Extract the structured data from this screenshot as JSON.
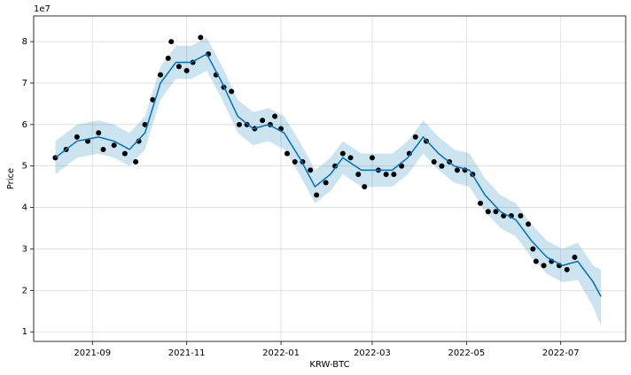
{
  "chart_data": {
    "type": "forecast",
    "x_label": "KRW-BTC",
    "y_label": "Price",
    "y_offset_label": "1e7",
    "grid": true,
    "xlim": [
      18833,
      19216
    ],
    "ylim": [
      0.77,
      8.62
    ],
    "xticks": [
      {
        "value": 18871,
        "label": "2021-09"
      },
      {
        "value": 18932,
        "label": "2021-11"
      },
      {
        "value": 18993,
        "label": "2022-01"
      },
      {
        "value": 19052,
        "label": "2022-03"
      },
      {
        "value": 19113,
        "label": "2022-05"
      },
      {
        "value": 19174,
        "label": "2022-07"
      }
    ],
    "yticks": [
      1,
      2,
      3,
      4,
      5,
      6,
      7,
      8
    ],
    "observed": {
      "color": "#000000",
      "x": [
        18847,
        18854,
        18861,
        18868,
        18875,
        18878,
        18885,
        18892,
        18899,
        18901,
        18905,
        18910,
        18915,
        18920,
        18922,
        18927,
        18932,
        18936,
        18941,
        18946,
        18951,
        18956,
        18961,
        18966,
        18971,
        18976,
        18981,
        18986,
        18989,
        18993,
        18997,
        19002,
        19007,
        19012,
        19016,
        19022,
        19028,
        19033,
        19038,
        19043,
        19047,
        19052,
        19056,
        19061,
        19066,
        19071,
        19076,
        19080,
        19087,
        19092,
        19097,
        19102,
        19107,
        19112,
        19117,
        19122,
        19127,
        19132,
        19137,
        19142,
        19148,
        19153,
        19156,
        19158,
        19163,
        19168,
        19173,
        19178,
        19183
      ],
      "values": [
        5.2,
        5.4,
        5.7,
        5.6,
        5.8,
        5.4,
        5.5,
        5.3,
        5.1,
        5.6,
        6.0,
        6.6,
        7.2,
        7.6,
        8.0,
        7.4,
        7.3,
        7.5,
        8.1,
        7.7,
        7.2,
        6.9,
        6.8,
        6.0,
        6.0,
        5.9,
        6.1,
        6.0,
        6.2,
        5.9,
        5.3,
        5.1,
        5.1,
        4.9,
        4.3,
        4.6,
        5.0,
        5.3,
        5.2,
        4.8,
        4.5,
        5.2,
        4.9,
        4.8,
        4.8,
        5.0,
        5.3,
        5.7,
        5.6,
        5.1,
        5.0,
        5.1,
        4.9,
        4.9,
        4.8,
        4.1,
        3.9,
        3.9,
        3.8,
        3.8,
        3.8,
        3.6,
        3.0,
        2.7,
        2.6,
        2.7,
        2.6,
        2.5,
        2.8
      ]
    },
    "forecast": {
      "color": "#0072B2",
      "x": [
        18847,
        18861,
        18875,
        18885,
        18895,
        18905,
        18915,
        18925,
        18935,
        18945,
        18955,
        18965,
        18975,
        18985,
        18995,
        19005,
        19015,
        19025,
        19033,
        19045,
        19055,
        19065,
        19075,
        19085,
        19095,
        19105,
        19115,
        19125,
        19135,
        19145,
        19155,
        19165,
        19175,
        19185,
        19195,
        19200
      ],
      "values": [
        5.2,
        5.6,
        5.7,
        5.6,
        5.4,
        5.8,
        7.0,
        7.5,
        7.5,
        7.7,
        7.0,
        6.2,
        5.9,
        6.0,
        5.8,
        5.2,
        4.5,
        4.8,
        5.2,
        4.9,
        4.9,
        4.9,
        5.2,
        5.7,
        5.3,
        5.0,
        4.9,
        4.3,
        3.9,
        3.7,
        3.2,
        2.8,
        2.6,
        2.7,
        2.2,
        1.85
      ],
      "lower": [
        4.8,
        5.2,
        5.3,
        5.2,
        5.0,
        5.4,
        6.6,
        7.1,
        7.1,
        7.3,
        6.6,
        5.8,
        5.5,
        5.6,
        5.4,
        4.8,
        4.1,
        4.4,
        4.8,
        4.5,
        4.5,
        4.5,
        4.8,
        5.3,
        4.9,
        4.6,
        4.5,
        3.9,
        3.5,
        3.3,
        2.8,
        2.4,
        2.2,
        2.25,
        1.6,
        1.15
      ],
      "upper": [
        5.6,
        6.0,
        6.1,
        6.0,
        5.8,
        6.2,
        7.4,
        7.9,
        7.9,
        8.1,
        7.4,
        6.6,
        6.3,
        6.4,
        6.2,
        5.6,
        4.9,
        5.2,
        5.6,
        5.3,
        5.3,
        5.3,
        5.6,
        6.1,
        5.7,
        5.4,
        5.3,
        4.7,
        4.3,
        4.1,
        3.6,
        3.2,
        3.0,
        3.15,
        2.6,
        2.5
      ]
    }
  }
}
